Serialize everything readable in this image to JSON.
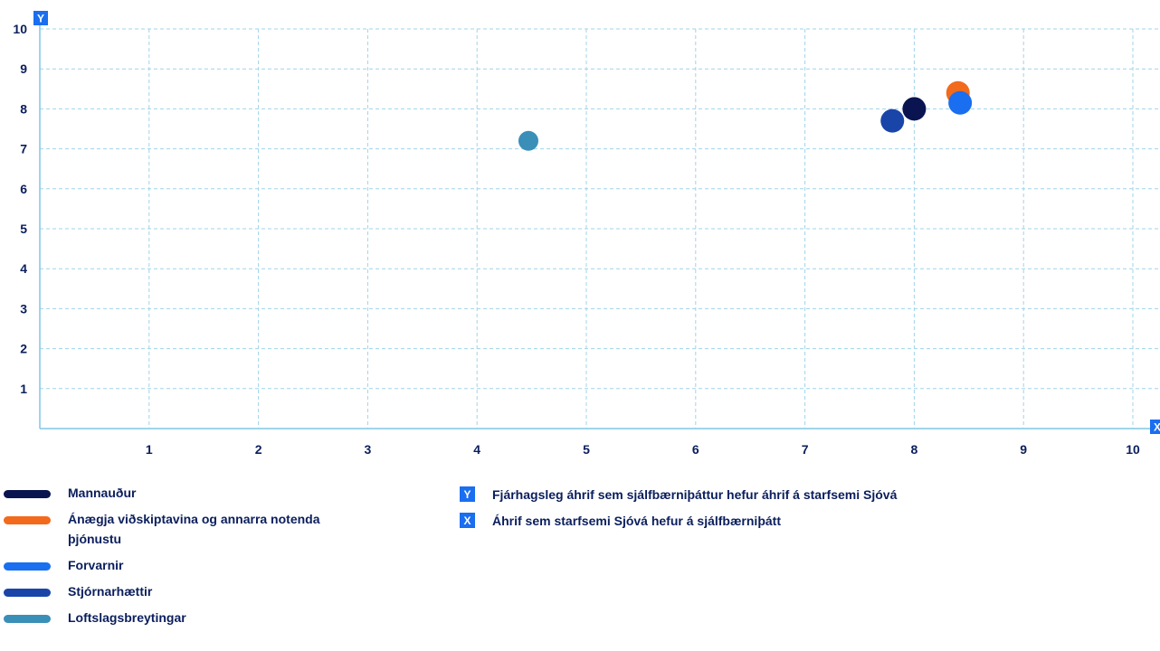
{
  "chart_data": {
    "type": "scatter",
    "xlim": [
      0,
      10
    ],
    "ylim": [
      0,
      10
    ],
    "x_ticks": [
      "1",
      "2",
      "3",
      "4",
      "5",
      "6",
      "7",
      "8",
      "9",
      "10"
    ],
    "y_ticks": [
      "1",
      "2",
      "3",
      "4",
      "5",
      "6",
      "7",
      "8",
      "9",
      "10"
    ],
    "x_axis_badge": "X",
    "y_axis_badge": "Y",
    "grid": true,
    "legend_placement": "bottom-left",
    "series": [
      {
        "name": "Mannauður",
        "color": "#0a1450",
        "x": 8.0,
        "y": 8.0
      },
      {
        "name": "Ánægja viðskiptavina og annarra notenda þjónustu",
        "color": "#f26a1b",
        "x": 8.4,
        "y": 8.4
      },
      {
        "name": "Forvarnir",
        "color": "#1a6ef0",
        "x": 8.42,
        "y": 8.15
      },
      {
        "name": "Stjórnarhættir",
        "color": "#1a45a8",
        "x": 7.8,
        "y": 7.7
      },
      {
        "name": "Loftslagsbreytingar",
        "color": "#3a8fb8",
        "x": 4.47,
        "y": 7.2
      }
    ],
    "axis_legend": [
      {
        "badge": "Y",
        "label": "Fjárhagsleg áhrif sem sjálfbærniþáttur hefur áhrif á starfsemi Sjóvá"
      },
      {
        "badge": "X",
        "label": "Áhrif sem starfsemi Sjóvá hefur á sjálfbærniþátt"
      }
    ]
  }
}
